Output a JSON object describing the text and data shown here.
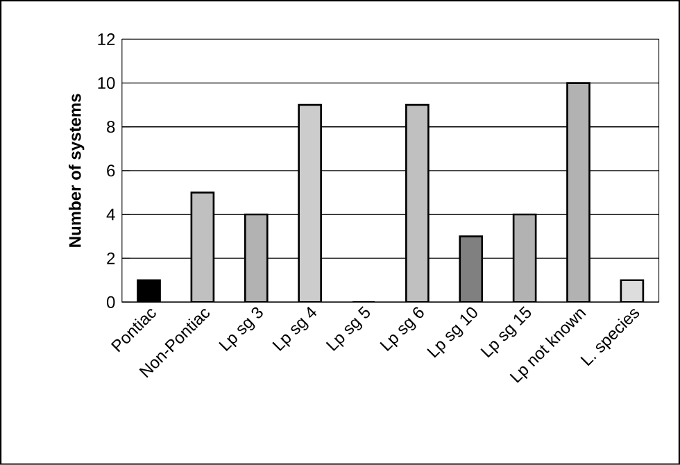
{
  "chart_data": {
    "type": "bar",
    "ylabel": "Number of systems",
    "categories": [
      "Pontiac",
      "Non-Pontiac",
      "Lp sg 3",
      "Lp sg 4",
      "Lp sg 5",
      "Lp sg 6",
      "Lp sg 10",
      "Lp sg 15",
      "Lp not known",
      "L. species"
    ],
    "values": [
      1,
      5,
      4,
      9,
      0,
      9,
      3,
      4,
      10,
      1
    ],
    "colors": [
      "#000000",
      "#c0c0c0",
      "#b2b2b2",
      "#cccccc",
      "#c0c0c0",
      "#c0c0c0",
      "#808080",
      "#b2b2b2",
      "#b2b2b2",
      "#dddddd"
    ],
    "ylim": [
      0,
      12
    ],
    "yticks": [
      0,
      2,
      4,
      6,
      8,
      10,
      12
    ],
    "grid": "y"
  }
}
